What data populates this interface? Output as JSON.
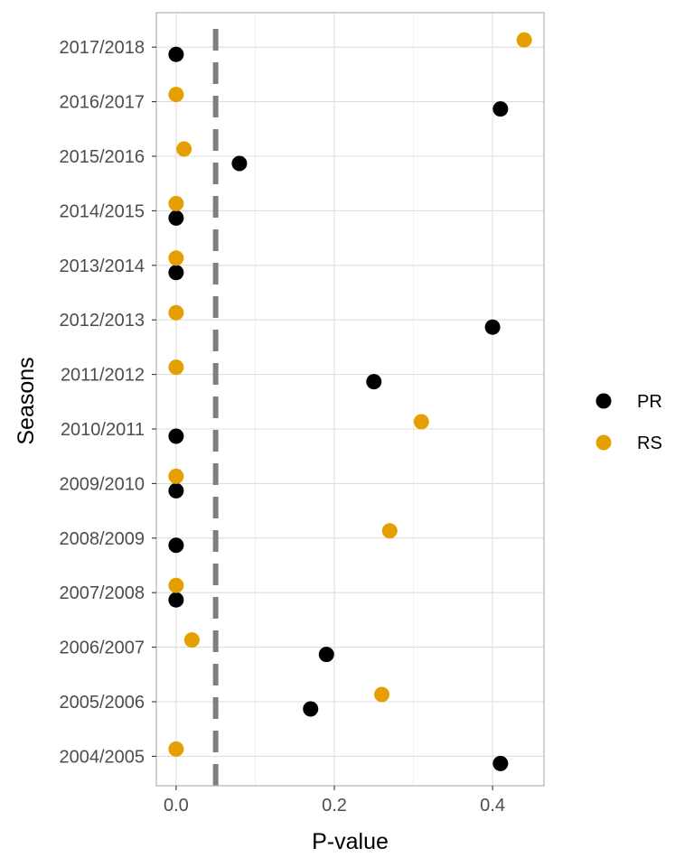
{
  "chart_data": {
    "type": "scatter",
    "xlabel": "P-value",
    "ylabel": "Seasons",
    "xlim": [
      -0.025,
      0.465
    ],
    "x_ticks": [
      0.0,
      0.2,
      0.4
    ],
    "x_tick_labels": [
      "0.0",
      "0.2",
      "0.4"
    ],
    "reference_line": {
      "x": 0.05,
      "style": "dashed",
      "color": "#7f7f7f"
    },
    "grid": true,
    "legend_position": "right",
    "categories": [
      "2004/2005",
      "2005/2006",
      "2006/2007",
      "2007/2008",
      "2008/2009",
      "2009/2010",
      "2010/2011",
      "2011/2012",
      "2012/2013",
      "2013/2014",
      "2014/2015",
      "2015/2016",
      "2016/2017",
      "2017/2018"
    ],
    "series": [
      {
        "name": "PR",
        "color": "#000000",
        "values": [
          0.41,
          0.17,
          0.19,
          0.0,
          0.0,
          0.0,
          0.0,
          0.25,
          0.4,
          0.0,
          0.0,
          0.08,
          0.41,
          0.0
        ]
      },
      {
        "name": "RS",
        "color": "#E69F00",
        "values": [
          0.0,
          0.26,
          0.02,
          0.0,
          0.27,
          0.0,
          0.31,
          0.0,
          0.0,
          0.0,
          0.0,
          0.01,
          0.0,
          0.44
        ]
      }
    ]
  }
}
